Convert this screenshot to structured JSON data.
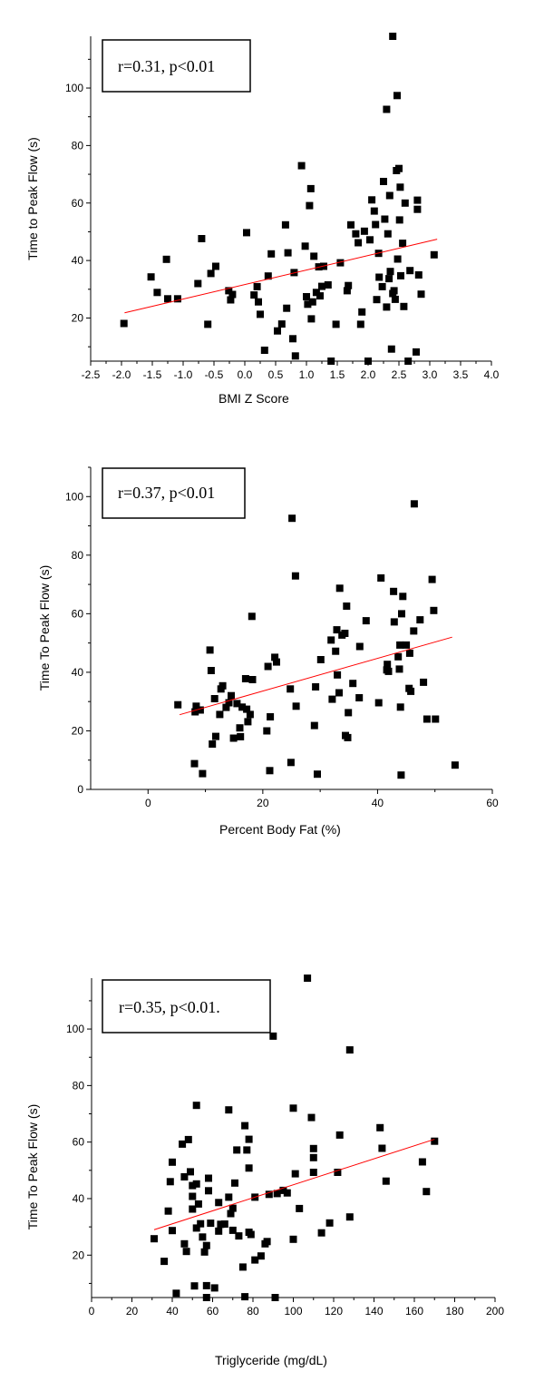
{
  "chart_data": [
    {
      "type": "scatter",
      "xlabel": "BMI Z Score",
      "ylabel": "Time to Peak Flow (s)",
      "annotation": "r=0.31, p<0.01",
      "xlim": [
        -2.5,
        4.0
      ],
      "ylim": [
        5,
        118
      ],
      "xticks": [
        "-2.5",
        "-2.0",
        "-1.5",
        "-1.0",
        "-0.5",
        "0.0",
        "0.5",
        "1.0",
        "1.5",
        "2.0",
        "2.5",
        "3.0",
        "3.5",
        "4.0"
      ],
      "yticks": [
        "20",
        "40",
        "60",
        "80",
        "100"
      ],
      "fit": [
        [
          -1.95,
          21.8
        ],
        [
          3.12,
          47.4
        ]
      ],
      "colors": {
        "points": "#000000",
        "fit": "#ff0000"
      },
      "points": [
        [
          -1.96,
          18.1
        ],
        [
          -1.52,
          34.3
        ],
        [
          -1.42,
          28.9
        ],
        [
          -1.27,
          40.4
        ],
        [
          -1.25,
          26.7
        ],
        [
          -1.09,
          26.7
        ],
        [
          -0.76,
          32.0
        ],
        [
          -0.7,
          47.6
        ],
        [
          -0.6,
          17.8
        ],
        [
          -0.55,
          35.5
        ],
        [
          -0.47,
          38.0
        ],
        [
          -0.26,
          29.5
        ],
        [
          -0.23,
          26.3
        ],
        [
          -0.2,
          28.2
        ],
        [
          0.03,
          49.7
        ],
        [
          0.15,
          28.0
        ],
        [
          0.2,
          30.9
        ],
        [
          0.22,
          25.6
        ],
        [
          0.25,
          21.3
        ],
        [
          0.32,
          8.8
        ],
        [
          0.38,
          34.6
        ],
        [
          0.43,
          42.3
        ],
        [
          0.53,
          15.5
        ],
        [
          0.6,
          17.9
        ],
        [
          0.66,
          52.4
        ],
        [
          0.7,
          42.7
        ],
        [
          0.68,
          23.4
        ],
        [
          0.78,
          12.8
        ],
        [
          0.8,
          35.8
        ],
        [
          0.82,
          6.8
        ],
        [
          0.92,
          73.0
        ],
        [
          0.98,
          45.0
        ],
        [
          1.0,
          27.4
        ],
        [
          1.02,
          24.8
        ],
        [
          1.05,
          59.1
        ],
        [
          1.07,
          65.0
        ],
        [
          1.08,
          19.7
        ],
        [
          1.1,
          25.6
        ],
        [
          1.12,
          41.5
        ],
        [
          1.16,
          28.9
        ],
        [
          1.2,
          37.8
        ],
        [
          1.22,
          27.7
        ],
        [
          1.25,
          31.0
        ],
        [
          1.28,
          38.0
        ],
        [
          1.35,
          31.5
        ],
        [
          1.4,
          5.0
        ],
        [
          1.48,
          17.8
        ],
        [
          1.55,
          39.2
        ],
        [
          1.66,
          29.5
        ],
        [
          1.68,
          31.3
        ],
        [
          1.72,
          52.4
        ],
        [
          1.8,
          49.3
        ],
        [
          1.84,
          46.2
        ],
        [
          1.88,
          17.8
        ],
        [
          1.9,
          22.1
        ],
        [
          1.94,
          50.2
        ],
        [
          2.0,
          5.0
        ],
        [
          2.03,
          47.2
        ],
        [
          2.06,
          61.1
        ],
        [
          2.1,
          57.2
        ],
        [
          2.12,
          52.5
        ],
        [
          2.14,
          26.4
        ],
        [
          2.17,
          42.5
        ],
        [
          2.18,
          34.2
        ],
        [
          2.23,
          30.9
        ],
        [
          2.25,
          67.5
        ],
        [
          2.27,
          54.4
        ],
        [
          2.3,
          23.8
        ],
        [
          2.3,
          92.6
        ],
        [
          2.32,
          49.3
        ],
        [
          2.34,
          33.7
        ],
        [
          2.35,
          62.6
        ],
        [
          2.36,
          36.2
        ],
        [
          2.38,
          9.2
        ],
        [
          2.4,
          28.5
        ],
        [
          2.4,
          118.0
        ],
        [
          2.42,
          29.5
        ],
        [
          2.44,
          26.5
        ],
        [
          2.46,
          71.3
        ],
        [
          2.47,
          97.4
        ],
        [
          2.48,
          40.5
        ],
        [
          2.5,
          72.0
        ],
        [
          2.51,
          54.1
        ],
        [
          2.52,
          65.5
        ],
        [
          2.53,
          34.7
        ],
        [
          2.56,
          46.0
        ],
        [
          2.58,
          24.0
        ],
        [
          2.6,
          60.0
        ],
        [
          2.65,
          5.0
        ],
        [
          2.68,
          36.5
        ],
        [
          2.78,
          8.2
        ],
        [
          2.8,
          61.0
        ],
        [
          2.8,
          57.8
        ],
        [
          2.82,
          35.0
        ],
        [
          2.86,
          28.3
        ],
        [
          3.07,
          42.0
        ]
      ]
    },
    {
      "type": "scatter",
      "xlabel": "Percent Body Fat (%)",
      "ylabel": "Time To Peak Flow (s)",
      "annotation": "r=0.37, p<0.01",
      "xlim": [
        -10,
        60
      ],
      "ylim": [
        0,
        110
      ],
      "xticks": [
        "0",
        "20",
        "40",
        "60"
      ],
      "yticks": [
        "0",
        "20",
        "40",
        "60",
        "80",
        "100"
      ],
      "fit": [
        [
          5.5,
          25.5
        ],
        [
          53.0,
          52.0
        ]
      ],
      "colors": {
        "points": "#000000",
        "fit": "#ff0000"
      },
      "points": [
        [
          5.2,
          28.9
        ],
        [
          8.1,
          8.8
        ],
        [
          8.2,
          26.5
        ],
        [
          8.4,
          28.4
        ],
        [
          9.1,
          27.1
        ],
        [
          9.5,
          5.4
        ],
        [
          10.8,
          47.6
        ],
        [
          11.0,
          40.6
        ],
        [
          11.2,
          15.5
        ],
        [
          11.6,
          31.0
        ],
        [
          11.8,
          18.1
        ],
        [
          12.5,
          25.6
        ],
        [
          12.7,
          34.3
        ],
        [
          13.0,
          35.4
        ],
        [
          13.6,
          28.0
        ],
        [
          14.1,
          29.6
        ],
        [
          14.5,
          32.0
        ],
        [
          14.9,
          17.5
        ],
        [
          15.5,
          29.3
        ],
        [
          16.0,
          21.0
        ],
        [
          16.1,
          18.0
        ],
        [
          16.4,
          28.1
        ],
        [
          17.0,
          37.8
        ],
        [
          17.2,
          27.4
        ],
        [
          17.4,
          23.1
        ],
        [
          17.8,
          25.6
        ],
        [
          18.1,
          59.1
        ],
        [
          18.2,
          37.5
        ],
        [
          20.7,
          20.0
        ],
        [
          20.9,
          42.0
        ],
        [
          21.2,
          6.4
        ],
        [
          21.3,
          24.8
        ],
        [
          22.1,
          45.1
        ],
        [
          22.4,
          43.5
        ],
        [
          24.8,
          34.3
        ],
        [
          24.9,
          9.2
        ],
        [
          25.1,
          92.6
        ],
        [
          25.7,
          72.9
        ],
        [
          25.8,
          28.4
        ],
        [
          29.0,
          21.8
        ],
        [
          29.2,
          35.0
        ],
        [
          29.5,
          5.2
        ],
        [
          30.1,
          44.3
        ],
        [
          31.9,
          51.0
        ],
        [
          32.1,
          30.8
        ],
        [
          32.7,
          47.2
        ],
        [
          32.9,
          54.5
        ],
        [
          33.0,
          39.1
        ],
        [
          33.3,
          33.0
        ],
        [
          33.4,
          68.7
        ],
        [
          33.8,
          52.7
        ],
        [
          34.3,
          53.3
        ],
        [
          34.4,
          18.4
        ],
        [
          34.6,
          62.6
        ],
        [
          34.8,
          17.7
        ],
        [
          34.9,
          26.2
        ],
        [
          35.7,
          36.2
        ],
        [
          36.8,
          31.3
        ],
        [
          36.9,
          48.8
        ],
        [
          38.0,
          57.6
        ],
        [
          40.2,
          29.6
        ],
        [
          40.6,
          72.2
        ],
        [
          41.6,
          40.8
        ],
        [
          41.7,
          42.7
        ],
        [
          41.9,
          40.3
        ],
        [
          42.8,
          67.6
        ],
        [
          42.9,
          57.2
        ],
        [
          43.6,
          45.3
        ],
        [
          43.8,
          41.1
        ],
        [
          43.9,
          49.3
        ],
        [
          44.0,
          28.1
        ],
        [
          44.1,
          4.9
        ],
        [
          44.2,
          60.0
        ],
        [
          44.4,
          65.9
        ],
        [
          45.0,
          49.3
        ],
        [
          45.5,
          34.5
        ],
        [
          45.6,
          46.5
        ],
        [
          45.8,
          33.5
        ],
        [
          46.3,
          54.1
        ],
        [
          46.4,
          97.5
        ],
        [
          47.4,
          57.9
        ],
        [
          48.0,
          36.6
        ],
        [
          48.6,
          24.0
        ],
        [
          49.5,
          71.7
        ],
        [
          49.8,
          61.1
        ],
        [
          50.1,
          24.0
        ],
        [
          53.5,
          8.3
        ]
      ]
    },
    {
      "type": "scatter",
      "xlabel": "Triglyceride (mg/dL)",
      "ylabel": "Time To Peak Flow (s)",
      "annotation": "r=0.35, p<0.01.",
      "xlim": [
        0,
        200
      ],
      "ylim": [
        5,
        118
      ],
      "xticks": [
        "0",
        "20",
        "40",
        "60",
        "80",
        "100",
        "120",
        "140",
        "160",
        "180",
        "200"
      ],
      "yticks": [
        "20",
        "40",
        "60",
        "80",
        "100"
      ],
      "fit": [
        [
          31,
          29.0
        ],
        [
          170,
          61.0
        ]
      ],
      "colors": {
        "points": "#000000",
        "fit": "#ff0000"
      },
      "points": [
        [
          31,
          25.8
        ],
        [
          36,
          17.8
        ],
        [
          38,
          35.6
        ],
        [
          39,
          46.0
        ],
        [
          40,
          28.7
        ],
        [
          40,
          52.9
        ],
        [
          42,
          6.5
        ],
        [
          45,
          59.3
        ],
        [
          46,
          47.7
        ],
        [
          46,
          24.0
        ],
        [
          47,
          21.3
        ],
        [
          48,
          60.9
        ],
        [
          49,
          49.5
        ],
        [
          50,
          36.3
        ],
        [
          50,
          44.6
        ],
        [
          50,
          40.8
        ],
        [
          51,
          9.1
        ],
        [
          52,
          45.2
        ],
        [
          52,
          29.6
        ],
        [
          52,
          73.0
        ],
        [
          53,
          38.1
        ],
        [
          54,
          31.1
        ],
        [
          55,
          26.4
        ],
        [
          56,
          21.1
        ],
        [
          57,
          5.0
        ],
        [
          57,
          23.4
        ],
        [
          57,
          9.2
        ],
        [
          58,
          47.2
        ],
        [
          58,
          42.8
        ],
        [
          59,
          31.3
        ],
        [
          61,
          8.4
        ],
        [
          63,
          28.5
        ],
        [
          63,
          38.6
        ],
        [
          64,
          30.9
        ],
        [
          66,
          31.0
        ],
        [
          68,
          40.5
        ],
        [
          68,
          71.4
        ],
        [
          69,
          34.7
        ],
        [
          70,
          36.6
        ],
        [
          70,
          28.8
        ],
        [
          71,
          45.5
        ],
        [
          72,
          57.2
        ],
        [
          73,
          26.8
        ],
        [
          75,
          15.8
        ],
        [
          76,
          5.3
        ],
        [
          76,
          65.8
        ],
        [
          77,
          57.2
        ],
        [
          78,
          61.0
        ],
        [
          78,
          50.8
        ],
        [
          78,
          28.1
        ],
        [
          79,
          27.3
        ],
        [
          81,
          40.5
        ],
        [
          81,
          18.3
        ],
        [
          84,
          19.7
        ],
        [
          86,
          24.0
        ],
        [
          87,
          24.8
        ],
        [
          88,
          41.5
        ],
        [
          90,
          97.5
        ],
        [
          91,
          5.0
        ],
        [
          92,
          41.8
        ],
        [
          95,
          42.9
        ],
        [
          97,
          42.0
        ],
        [
          100,
          72.0
        ],
        [
          100,
          25.6
        ],
        [
          101,
          48.8
        ],
        [
          103,
          36.5
        ],
        [
          107,
          118.0
        ],
        [
          109,
          68.7
        ],
        [
          110,
          54.5
        ],
        [
          110,
          57.7
        ],
        [
          110,
          49.3
        ],
        [
          114,
          27.9
        ],
        [
          118,
          31.4
        ],
        [
          122,
          49.3
        ],
        [
          123,
          62.5
        ],
        [
          128,
          92.6
        ],
        [
          128,
          33.5
        ],
        [
          143,
          65.1
        ],
        [
          144,
          57.8
        ],
        [
          146,
          46.2
        ],
        [
          164,
          53.0
        ],
        [
          166,
          42.5
        ],
        [
          170,
          60.3
        ]
      ]
    }
  ]
}
